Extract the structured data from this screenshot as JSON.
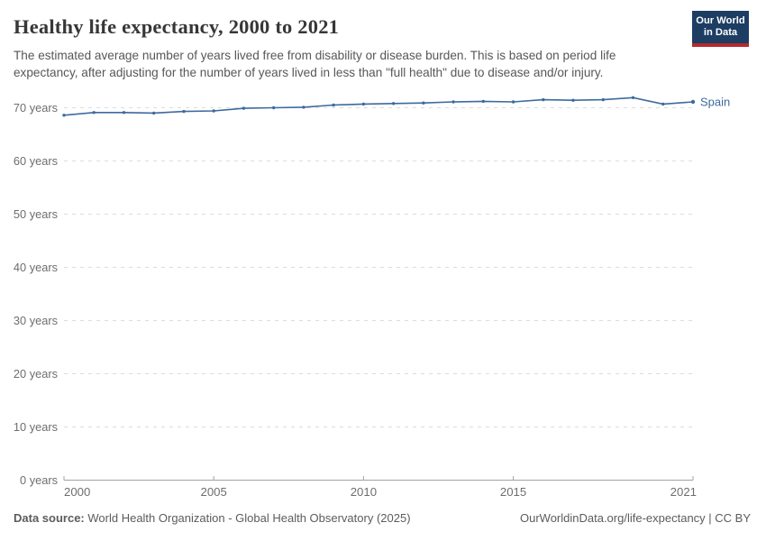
{
  "header": {
    "title": "Healthy life expectancy, 2000 to 2021",
    "subtitle": "The estimated average number of years lived free from disability or disease burden. This is based on period life expectancy, after adjusting for the number of years lived in less than \"full health\" due to disease and/or injury."
  },
  "logo": {
    "line1": "Our World",
    "line2": "in Data"
  },
  "chart_data": {
    "type": "line",
    "title": "Healthy life expectancy, 2000 to 2021",
    "x": [
      2000,
      2001,
      2002,
      2003,
      2004,
      2005,
      2006,
      2007,
      2008,
      2009,
      2010,
      2011,
      2012,
      2013,
      2014,
      2015,
      2016,
      2017,
      2018,
      2019,
      2020,
      2021
    ],
    "series": [
      {
        "name": "Spain",
        "color": "#3d6a9e",
        "values": [
          68.6,
          69.1,
          69.1,
          69.0,
          69.3,
          69.4,
          69.9,
          70.0,
          70.1,
          70.5,
          70.7,
          70.8,
          70.9,
          71.1,
          71.2,
          71.1,
          71.5,
          71.4,
          71.5,
          71.9,
          70.7,
          71.1
        ]
      }
    ],
    "xlabel": "",
    "ylabel": "",
    "xlim": [
      2000,
      2021
    ],
    "ylim": [
      0,
      75
    ],
    "grid": "horizontal-dashed",
    "legend_position": "end-of-line-label",
    "yticks": [
      {
        "value": 0,
        "label": "0 years"
      },
      {
        "value": 10,
        "label": "10 years"
      },
      {
        "value": 20,
        "label": "20 years"
      },
      {
        "value": 30,
        "label": "30 years"
      },
      {
        "value": 40,
        "label": "40 years"
      },
      {
        "value": 50,
        "label": "50 years"
      },
      {
        "value": 60,
        "label": "60 years"
      },
      {
        "value": 70,
        "label": "70 years"
      }
    ],
    "xticks": [
      {
        "value": 2000,
        "label": "2000"
      },
      {
        "value": 2005,
        "label": "2005"
      },
      {
        "value": 2010,
        "label": "2010"
      },
      {
        "value": 2015,
        "label": "2015"
      },
      {
        "value": 2021,
        "label": "2021"
      }
    ]
  },
  "footer": {
    "source_label": "Data source:",
    "source_text": "World Health Organization - Global Health Observatory (2025)",
    "link_text": "OurWorldinData.org/life-expectancy | CC BY"
  },
  "colors": {
    "line": "#3d6a9e",
    "grid": "#dddddd",
    "axis": "#a3a3a3",
    "tick_text": "#6e6e6e",
    "logo_bg": "#1d3d63",
    "logo_accent": "#b5292e"
  }
}
